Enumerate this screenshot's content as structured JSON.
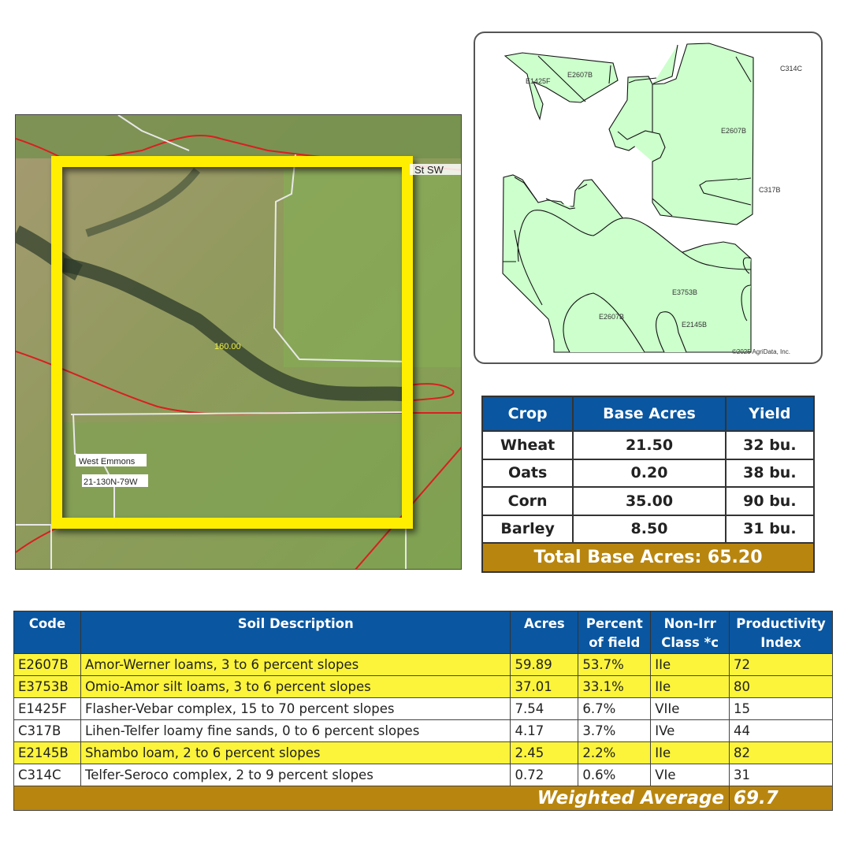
{
  "aerial_map": {
    "road_label": "St SW",
    "acreage_label": "160.00",
    "township_label": "West Emmons",
    "section_label": "21-130N-79W",
    "boundary_color": "#ffee00"
  },
  "soil_map": {
    "labels": [
      "E1425F",
      "E2607B",
      "C314C",
      "E2607B",
      "C317B",
      "E3753B",
      "E2607B",
      "E2145B"
    ],
    "copyright": "©2025 AgriData, Inc.",
    "fill_color": "#ccffcc"
  },
  "crop_table": {
    "headers": [
      "Crop",
      "Base Acres",
      "Yield"
    ],
    "rows": [
      [
        "Wheat",
        "21.50",
        "32 bu."
      ],
      [
        "Oats",
        "0.20",
        "38 bu."
      ],
      [
        "Corn",
        "35.00",
        "90 bu."
      ],
      [
        "Barley",
        "8.50",
        "31 bu."
      ]
    ],
    "total": "Total Base Acres: 65.20"
  },
  "soil_table": {
    "headers": [
      "Code",
      "Soil Description",
      "Acres",
      "Percent of field",
      "Non-Irr Class *c",
      "Productivity Index"
    ],
    "rows": [
      [
        "E2607B",
        "Amor-Werner loams, 3 to 6 percent slopes",
        "59.89",
        "53.7%",
        "IIe",
        "72"
      ],
      [
        "E3753B",
        "Omio-Amor silt loams, 3 to 6 percent slopes",
        "37.01",
        "33.1%",
        "IIe",
        "80"
      ],
      [
        "E1425F",
        "Flasher-Vebar complex, 15 to 70 percent slopes",
        "7.54",
        "6.7%",
        "VIIe",
        "15"
      ],
      [
        "C317B",
        "Lihen-Telfer loamy fine sands, 0 to 6 percent slopes",
        "4.17",
        "3.7%",
        "IVe",
        "44"
      ],
      [
        "E2145B",
        "Shambo loam, 2 to 6 percent slopes",
        "2.45",
        "2.2%",
        "IIe",
        "82"
      ],
      [
        "C314C",
        "Telfer-Seroco complex, 2 to 9 percent slopes",
        "0.72",
        "0.6%",
        "VIe",
        "31"
      ]
    ],
    "highlighted_rows": [
      0,
      1,
      4
    ],
    "weighted_average_label": "Weighted Average",
    "weighted_average_value": "69.7",
    "highlight_color": "#fbf43a",
    "header_color": "#0a56a0",
    "total_color": "#b8860f"
  }
}
